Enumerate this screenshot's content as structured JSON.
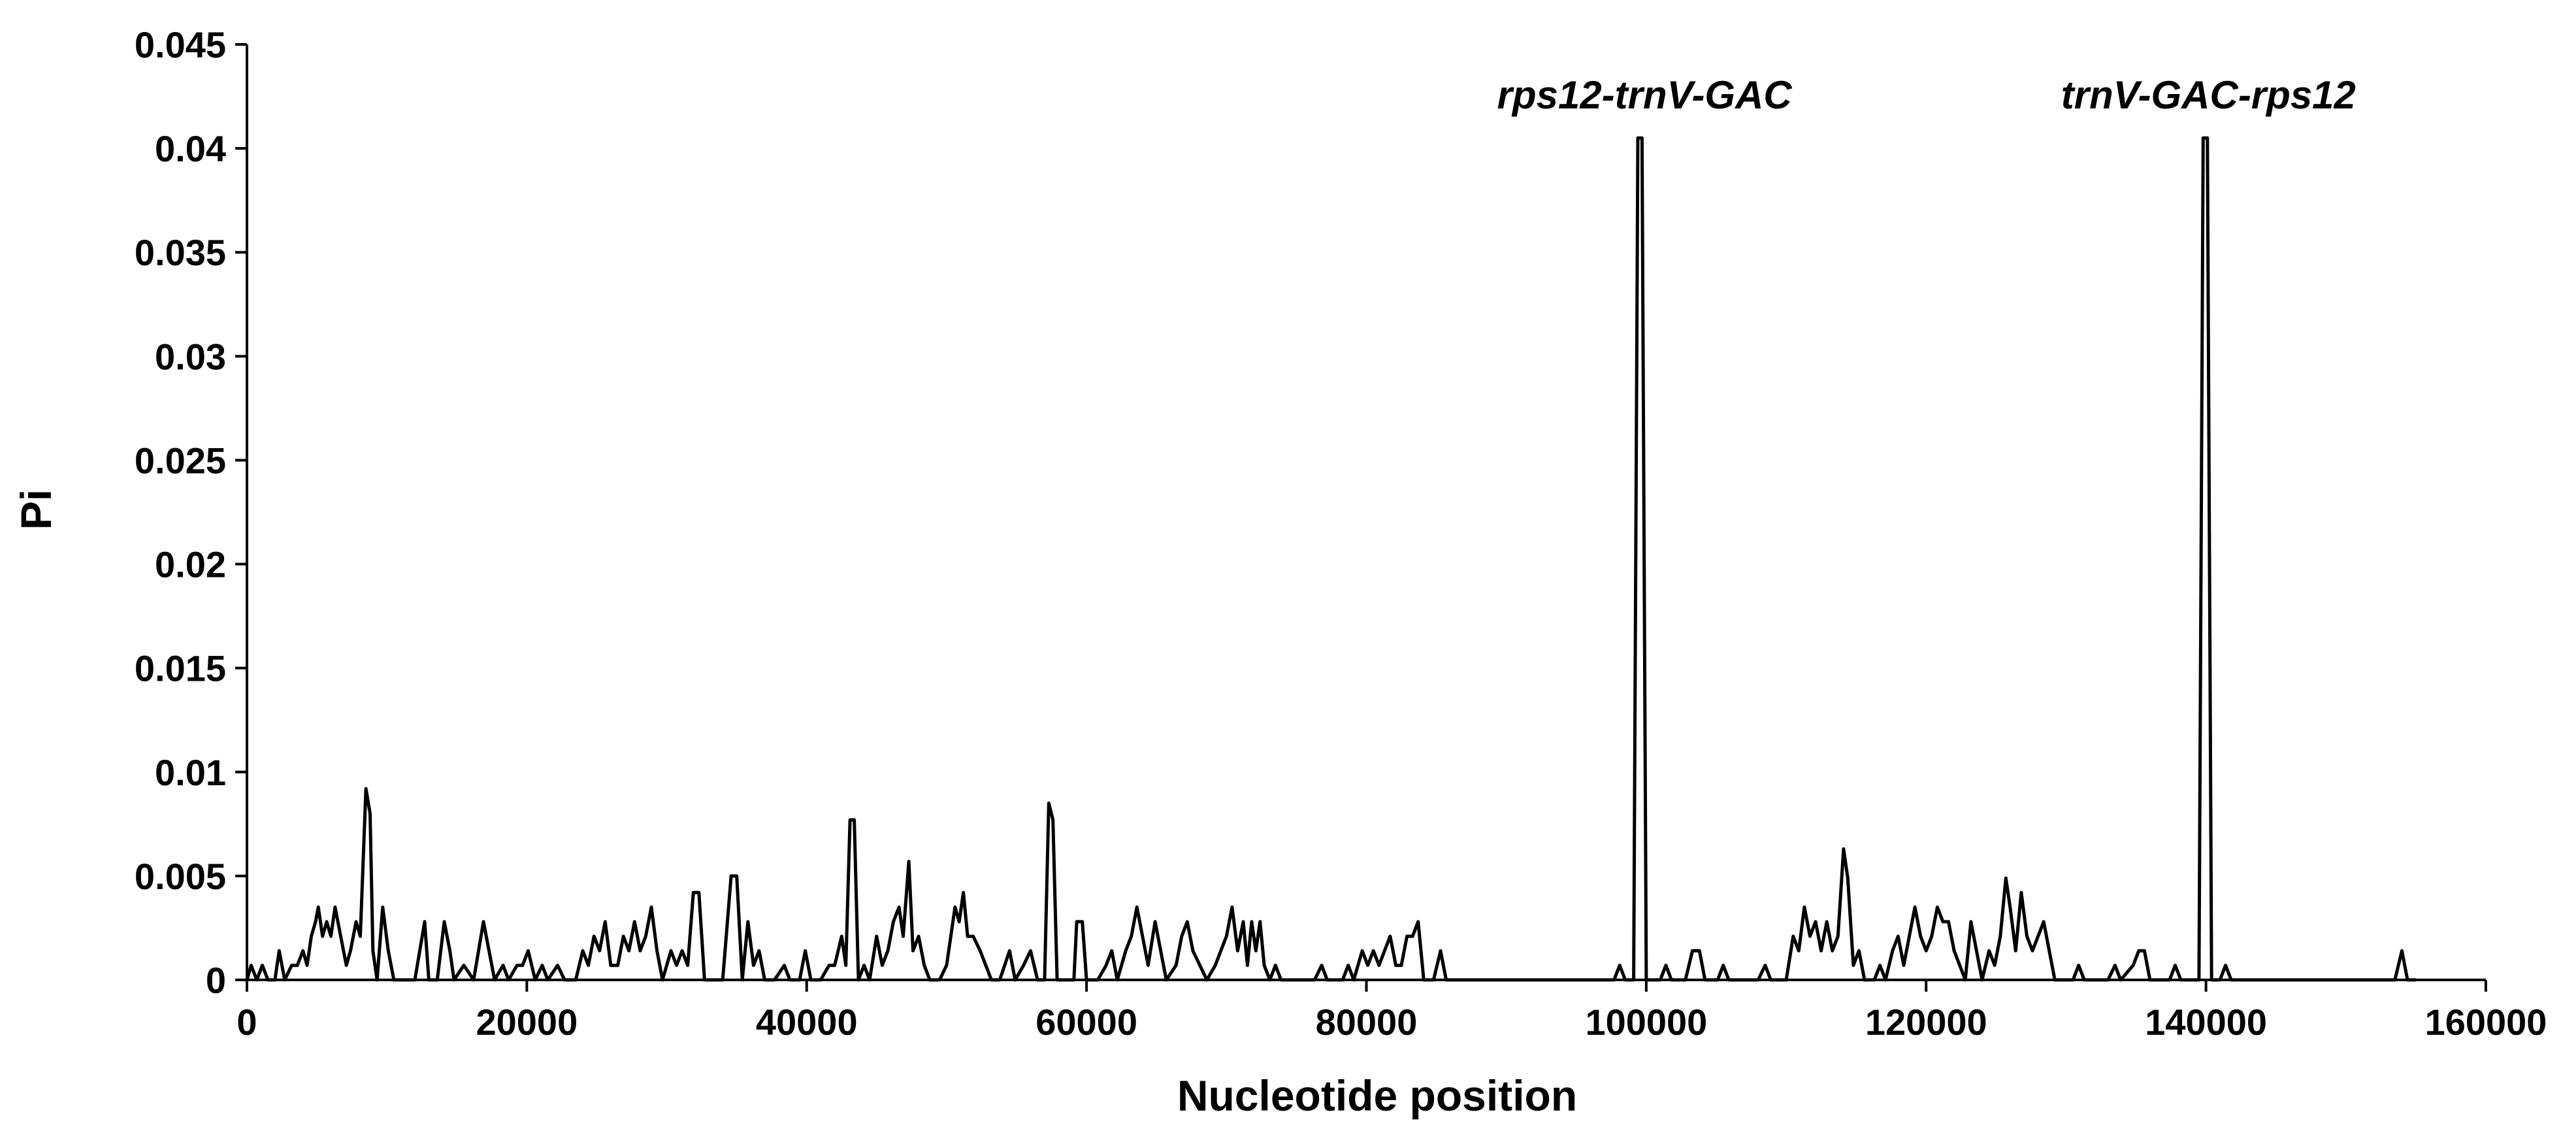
{
  "chart_data": {
    "type": "line",
    "title": "",
    "xlabel": "Nucleotide position",
    "ylabel": "Pi",
    "xlim": [
      0,
      160000
    ],
    "ylim": [
      0,
      0.045
    ],
    "x_ticks": [
      "0",
      "20000",
      "40000",
      "60000",
      "80000",
      "100000",
      "120000",
      "140000",
      "160000"
    ],
    "y_ticks": [
      "0",
      "0.005",
      "0.01",
      "0.015",
      "0.02",
      "0.025",
      "0.03",
      "0.035",
      "0.04",
      "0.045"
    ],
    "grid": false,
    "legend": "none",
    "line_color": "#000000",
    "annotations": [
      {
        "text": "rps12-trnV-GAC",
        "x": 99500,
        "y": 0.0405
      },
      {
        "text": "trnV-GAC-rps12",
        "x": 139800,
        "y": 0.0405
      }
    ],
    "series": [
      {
        "points": [
          [
            0,
            0
          ],
          [
            300,
            0.0007
          ],
          [
            700,
            0
          ],
          [
            1100,
            0.0007
          ],
          [
            1500,
            0
          ],
          [
            2000,
            0
          ],
          [
            2300,
            0.0014
          ],
          [
            2700,
            0
          ],
          [
            3200,
            0.0007
          ],
          [
            3600,
            0.0007
          ],
          [
            4000,
            0.0014
          ],
          [
            4300,
            0.0007
          ],
          [
            4600,
            0.0021
          ],
          [
            4900,
            0.0028
          ],
          [
            5100,
            0.0035
          ],
          [
            5400,
            0.0021
          ],
          [
            5700,
            0.0028
          ],
          [
            6000,
            0.0021
          ],
          [
            6300,
            0.0035
          ],
          [
            6700,
            0.0021
          ],
          [
            7100,
            0.0007
          ],
          [
            7400,
            0.0014
          ],
          [
            7800,
            0.0028
          ],
          [
            8100,
            0.0021
          ],
          [
            8500,
            0.0092
          ],
          [
            8800,
            0.008
          ],
          [
            9000,
            0.0014
          ],
          [
            9300,
            0
          ],
          [
            9700,
            0.0035
          ],
          [
            10100,
            0.0014
          ],
          [
            10500,
            0
          ],
          [
            11000,
            0
          ],
          [
            11500,
            0
          ],
          [
            12000,
            0
          ],
          [
            12700,
            0.0028
          ],
          [
            13000,
            0
          ],
          [
            13600,
            0
          ],
          [
            14100,
            0.0028
          ],
          [
            14500,
            0.0014
          ],
          [
            14800,
            0
          ],
          [
            15500,
            0.0007
          ],
          [
            16200,
            0
          ],
          [
            16900,
            0.0028
          ],
          [
            17300,
            0.0014
          ],
          [
            17700,
            0
          ],
          [
            18300,
            0.0007
          ],
          [
            18700,
            0
          ],
          [
            19300,
            0.0007
          ],
          [
            19700,
            0.0007
          ],
          [
            20100,
            0.0014
          ],
          [
            20600,
            0
          ],
          [
            21100,
            0.0007
          ],
          [
            21500,
            0
          ],
          [
            22200,
            0.0007
          ],
          [
            22700,
            0
          ],
          [
            23500,
            0
          ],
          [
            24000,
            0.0014
          ],
          [
            24400,
            0.0007
          ],
          [
            24800,
            0.0021
          ],
          [
            25200,
            0.0014
          ],
          [
            25600,
            0.0028
          ],
          [
            26000,
            0.0007
          ],
          [
            26500,
            0.0007
          ],
          [
            26900,
            0.0021
          ],
          [
            27300,
            0.0014
          ],
          [
            27700,
            0.0028
          ],
          [
            28100,
            0.0014
          ],
          [
            28500,
            0.0021
          ],
          [
            28900,
            0.0035
          ],
          [
            29300,
            0.0014
          ],
          [
            29700,
            0
          ],
          [
            30300,
            0.0014
          ],
          [
            30700,
            0.0007
          ],
          [
            31100,
            0.0014
          ],
          [
            31500,
            0.0007
          ],
          [
            31900,
            0.0042
          ],
          [
            32300,
            0.0042
          ],
          [
            32700,
            0
          ],
          [
            33200,
            0
          ],
          [
            34000,
            0
          ],
          [
            34600,
            0.005
          ],
          [
            35000,
            0.005
          ],
          [
            35400,
            0
          ],
          [
            35800,
            0.0028
          ],
          [
            36200,
            0.0007
          ],
          [
            36600,
            0.0014
          ],
          [
            37000,
            0
          ],
          [
            37700,
            0
          ],
          [
            38400,
            0.0007
          ],
          [
            38800,
            0
          ],
          [
            39500,
            0
          ],
          [
            39900,
            0.0014
          ],
          [
            40300,
            0
          ],
          [
            41000,
            0
          ],
          [
            41600,
            0.0007
          ],
          [
            42000,
            0.0007
          ],
          [
            42500,
            0.0021
          ],
          [
            42800,
            0.0007
          ],
          [
            43100,
            0.0077
          ],
          [
            43400,
            0.0077
          ],
          [
            43700,
            0
          ],
          [
            44100,
            0.0007
          ],
          [
            44500,
            0
          ],
          [
            45000,
            0.0021
          ],
          [
            45400,
            0.0007
          ],
          [
            45800,
            0.0014
          ],
          [
            46200,
            0.0028
          ],
          [
            46600,
            0.0035
          ],
          [
            46900,
            0.0021
          ],
          [
            47300,
            0.0057
          ],
          [
            47600,
            0.0014
          ],
          [
            48000,
            0.0021
          ],
          [
            48400,
            0.0007
          ],
          [
            48800,
            0
          ],
          [
            49500,
            0
          ],
          [
            50000,
            0.0007
          ],
          [
            50300,
            0.0021
          ],
          [
            50600,
            0.0035
          ],
          [
            50900,
            0.0028
          ],
          [
            51200,
            0.0042
          ],
          [
            51500,
            0.0021
          ],
          [
            51900,
            0.0021
          ],
          [
            52400,
            0.0014
          ],
          [
            52800,
            0.0007
          ],
          [
            53200,
            0
          ],
          [
            53800,
            0
          ],
          [
            54500,
            0.0014
          ],
          [
            54900,
            0
          ],
          [
            55500,
            0.0007
          ],
          [
            56000,
            0.0014
          ],
          [
            56500,
            0
          ],
          [
            57000,
            0
          ],
          [
            57300,
            0.0085
          ],
          [
            57600,
            0.0077
          ],
          [
            57900,
            0
          ],
          [
            58500,
            0
          ],
          [
            59100,
            0
          ],
          [
            59300,
            0.0028
          ],
          [
            59700,
            0.0028
          ],
          [
            60000,
            0
          ],
          [
            60800,
            0
          ],
          [
            61400,
            0.0007
          ],
          [
            61800,
            0.0014
          ],
          [
            62200,
            0
          ],
          [
            62800,
            0.0014
          ],
          [
            63200,
            0.0021
          ],
          [
            63600,
            0.0035
          ],
          [
            64000,
            0.0021
          ],
          [
            64400,
            0.0007
          ],
          [
            64900,
            0.0028
          ],
          [
            65300,
            0.0014
          ],
          [
            65700,
            0
          ],
          [
            66400,
            0.0007
          ],
          [
            66800,
            0.0021
          ],
          [
            67200,
            0.0028
          ],
          [
            67600,
            0.0014
          ],
          [
            68100,
            0.0007
          ],
          [
            68600,
            0
          ],
          [
            69200,
            0.0007
          ],
          [
            69600,
            0.0014
          ],
          [
            70000,
            0.0021
          ],
          [
            70400,
            0.0035
          ],
          [
            70800,
            0.0014
          ],
          [
            71200,
            0.0028
          ],
          [
            71500,
            0.0007
          ],
          [
            71800,
            0.0028
          ],
          [
            72100,
            0.0014
          ],
          [
            72400,
            0.0028
          ],
          [
            72700,
            0.0007
          ],
          [
            73100,
            0
          ],
          [
            73500,
            0.0007
          ],
          [
            73900,
            0
          ],
          [
            75000,
            0
          ],
          [
            76300,
            0
          ],
          [
            76800,
            0.0007
          ],
          [
            77200,
            0
          ],
          [
            78300,
            0
          ],
          [
            78700,
            0.0007
          ],
          [
            79100,
            0
          ],
          [
            79700,
            0.0014
          ],
          [
            80100,
            0.0007
          ],
          [
            80500,
            0.0014
          ],
          [
            80900,
            0.0007
          ],
          [
            81300,
            0.0014
          ],
          [
            81700,
            0.0021
          ],
          [
            82100,
            0.0007
          ],
          [
            82500,
            0.0007
          ],
          [
            82900,
            0.0021
          ],
          [
            83300,
            0.0021
          ],
          [
            83700,
            0.0028
          ],
          [
            84100,
            0
          ],
          [
            84800,
            0
          ],
          [
            85300,
            0.0014
          ],
          [
            85700,
            0
          ],
          [
            87000,
            0
          ],
          [
            90000,
            0
          ],
          [
            93000,
            0
          ],
          [
            96000,
            0
          ],
          [
            97700,
            0
          ],
          [
            98100,
            0.0007
          ],
          [
            98500,
            0
          ],
          [
            99100,
            0
          ],
          [
            99400,
            0.0405
          ],
          [
            99700,
            0.0405
          ],
          [
            100000,
            0
          ],
          [
            101000,
            0
          ],
          [
            101400,
            0.0007
          ],
          [
            101800,
            0
          ],
          [
            102800,
            0
          ],
          [
            103300,
            0.0014
          ],
          [
            103800,
            0.0014
          ],
          [
            104200,
            0
          ],
          [
            105100,
            0
          ],
          [
            105500,
            0.0007
          ],
          [
            105900,
            0
          ],
          [
            108000,
            0
          ],
          [
            108500,
            0.0007
          ],
          [
            108900,
            0
          ],
          [
            110000,
            0
          ],
          [
            110500,
            0.0021
          ],
          [
            110900,
            0.0014
          ],
          [
            111300,
            0.0035
          ],
          [
            111700,
            0.0021
          ],
          [
            112100,
            0.0028
          ],
          [
            112500,
            0.0014
          ],
          [
            112900,
            0.0028
          ],
          [
            113300,
            0.0014
          ],
          [
            113700,
            0.0021
          ],
          [
            114100,
            0.0063
          ],
          [
            114400,
            0.0049
          ],
          [
            114800,
            0.0007
          ],
          [
            115200,
            0.0014
          ],
          [
            115600,
            0
          ],
          [
            116300,
            0
          ],
          [
            116700,
            0.0007
          ],
          [
            117100,
            0
          ],
          [
            117600,
            0.0014
          ],
          [
            118000,
            0.0021
          ],
          [
            118400,
            0.0007
          ],
          [
            118800,
            0.0021
          ],
          [
            119200,
            0.0035
          ],
          [
            119600,
            0.0021
          ],
          [
            120000,
            0.0014
          ],
          [
            120400,
            0.0021
          ],
          [
            120800,
            0.0035
          ],
          [
            121200,
            0.0028
          ],
          [
            121600,
            0.0028
          ],
          [
            122000,
            0.0014
          ],
          [
            122400,
            0.0007
          ],
          [
            122800,
            0
          ],
          [
            123200,
            0.0028
          ],
          [
            123600,
            0.0014
          ],
          [
            124000,
            0
          ],
          [
            124500,
            0.0014
          ],
          [
            124900,
            0.0007
          ],
          [
            125300,
            0.0021
          ],
          [
            125700,
            0.0049
          ],
          [
            126000,
            0.0035
          ],
          [
            126400,
            0.0014
          ],
          [
            126800,
            0.0042
          ],
          [
            127200,
            0.0021
          ],
          [
            127600,
            0.0014
          ],
          [
            128000,
            0.0021
          ],
          [
            128400,
            0.0028
          ],
          [
            128800,
            0.0014
          ],
          [
            129200,
            0
          ],
          [
            130500,
            0
          ],
          [
            130900,
            0.0007
          ],
          [
            131300,
            0
          ],
          [
            133000,
            0
          ],
          [
            133500,
            0.0007
          ],
          [
            133900,
            0
          ],
          [
            134800,
            0.0007
          ],
          [
            135200,
            0.0014
          ],
          [
            135600,
            0.0014
          ],
          [
            136000,
            0
          ],
          [
            137400,
            0
          ],
          [
            137800,
            0.0007
          ],
          [
            138200,
            0
          ],
          [
            139500,
            0
          ],
          [
            139800,
            0.0405
          ],
          [
            140100,
            0.0405
          ],
          [
            140400,
            0
          ],
          [
            141000,
            0
          ],
          [
            141400,
            0.0007
          ],
          [
            141800,
            0
          ],
          [
            145000,
            0
          ],
          [
            150000,
            0
          ],
          [
            153500,
            0
          ],
          [
            154000,
            0.0014
          ],
          [
            154400,
            0
          ],
          [
            155000,
            0
          ]
        ]
      }
    ]
  }
}
